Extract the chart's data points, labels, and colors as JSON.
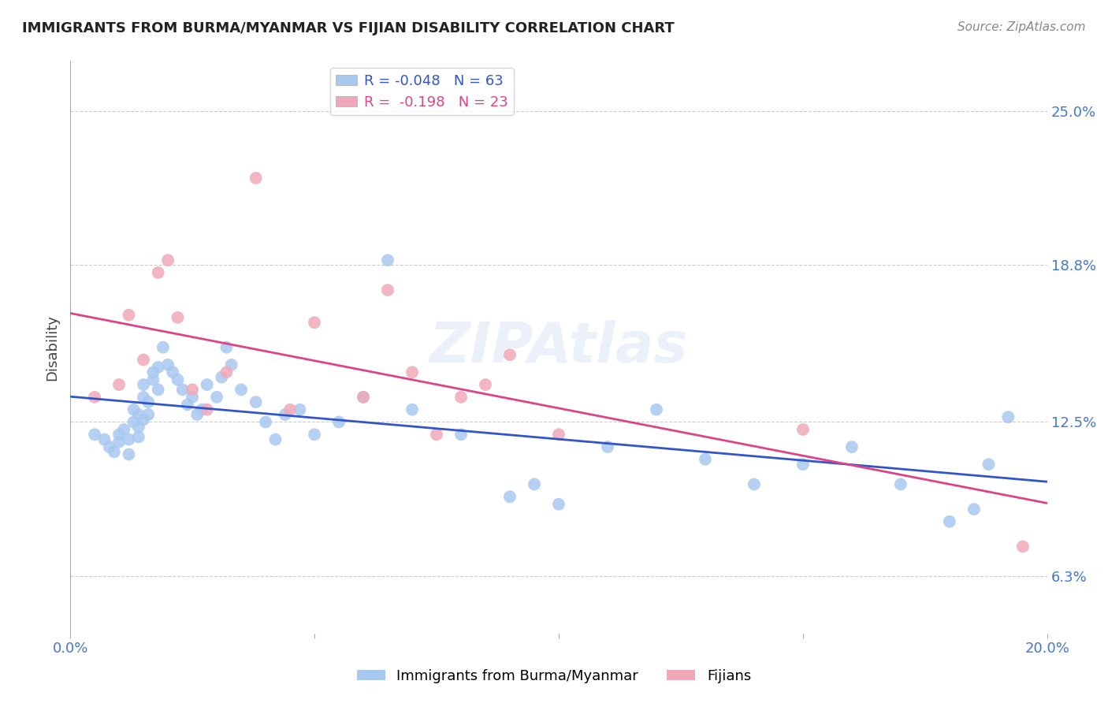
{
  "title": "IMMIGRANTS FROM BURMA/MYANMAR VS FIJIAN DISABILITY CORRELATION CHART",
  "source": "Source: ZipAtlas.com",
  "ylabel": "Disability",
  "ytick_labels": [
    "6.3%",
    "12.5%",
    "18.8%",
    "25.0%"
  ],
  "ytick_values": [
    0.063,
    0.125,
    0.188,
    0.25
  ],
  "xlim": [
    0.0,
    0.2
  ],
  "ylim": [
    0.04,
    0.27
  ],
  "legend_blue_r": "-0.048",
  "legend_blue_n": "63",
  "legend_pink_r": "-0.198",
  "legend_pink_n": "23",
  "blue_color": "#a8c8f0",
  "pink_color": "#f0a8b8",
  "line_blue": "#3355cc",
  "line_pink": "#dd4488",
  "title_color": "#222222",
  "axis_label_color": "#4477cc",
  "watermark": "ZIPAtlas",
  "blue_scatter_x": [
    0.005,
    0.007,
    0.008,
    0.009,
    0.01,
    0.01,
    0.011,
    0.012,
    0.012,
    0.013,
    0.013,
    0.014,
    0.014,
    0.014,
    0.015,
    0.015,
    0.015,
    0.016,
    0.016,
    0.017,
    0.017,
    0.018,
    0.018,
    0.019,
    0.02,
    0.021,
    0.022,
    0.023,
    0.024,
    0.025,
    0.026,
    0.027,
    0.028,
    0.03,
    0.031,
    0.032,
    0.033,
    0.035,
    0.038,
    0.04,
    0.042,
    0.044,
    0.047,
    0.05,
    0.055,
    0.06,
    0.065,
    0.07,
    0.08,
    0.09,
    0.095,
    0.1,
    0.11,
    0.12,
    0.13,
    0.14,
    0.15,
    0.16,
    0.17,
    0.18,
    0.185,
    0.188,
    0.192
  ],
  "blue_scatter_y": [
    0.12,
    0.118,
    0.115,
    0.113,
    0.117,
    0.12,
    0.122,
    0.112,
    0.118,
    0.125,
    0.13,
    0.128,
    0.123,
    0.119,
    0.126,
    0.135,
    0.14,
    0.128,
    0.133,
    0.142,
    0.145,
    0.138,
    0.147,
    0.155,
    0.148,
    0.145,
    0.142,
    0.138,
    0.132,
    0.135,
    0.128,
    0.13,
    0.14,
    0.135,
    0.143,
    0.155,
    0.148,
    0.138,
    0.133,
    0.125,
    0.118,
    0.128,
    0.13,
    0.12,
    0.125,
    0.135,
    0.19,
    0.13,
    0.12,
    0.095,
    0.1,
    0.092,
    0.115,
    0.13,
    0.11,
    0.1,
    0.108,
    0.115,
    0.1,
    0.085,
    0.09,
    0.108,
    0.127
  ],
  "pink_scatter_x": [
    0.005,
    0.01,
    0.012,
    0.015,
    0.018,
    0.02,
    0.022,
    0.025,
    0.028,
    0.032,
    0.038,
    0.045,
    0.05,
    0.06,
    0.065,
    0.07,
    0.075,
    0.08,
    0.085,
    0.09,
    0.1,
    0.15,
    0.195
  ],
  "pink_scatter_y": [
    0.135,
    0.14,
    0.168,
    0.15,
    0.185,
    0.19,
    0.167,
    0.138,
    0.13,
    0.145,
    0.223,
    0.13,
    0.165,
    0.135,
    0.178,
    0.145,
    0.12,
    0.135,
    0.14,
    0.152,
    0.12,
    0.122,
    0.075
  ],
  "bottom_legend_labels": [
    "Immigrants from Burma/Myanmar",
    "Fijians"
  ]
}
